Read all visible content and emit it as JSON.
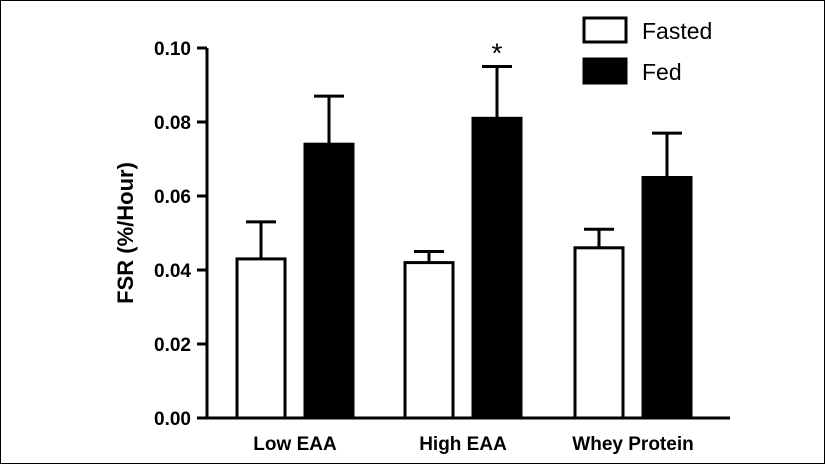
{
  "chart_data": {
    "type": "bar",
    "title": "",
    "xlabel": "",
    "ylabel": "FSR (%/Hour)",
    "ylim": [
      0.0,
      0.1
    ],
    "yticks": [
      "0.00",
      "0.02",
      "0.04",
      "0.06",
      "0.08",
      "0.10"
    ],
    "categories": [
      "Low EAA",
      "High EAA",
      "Whey Protein"
    ],
    "series": [
      {
        "name": "Fasted",
        "color": "#ffffff",
        "values": [
          0.043,
          0.042,
          0.046
        ],
        "errors": [
          0.01,
          0.003,
          0.005
        ]
      },
      {
        "name": "Fed",
        "color": "#000000",
        "values": [
          0.074,
          0.081,
          0.065
        ],
        "errors": [
          0.013,
          0.014,
          0.012
        ]
      }
    ],
    "annotations": [
      {
        "text": "*",
        "category": "High EAA",
        "series": "Fed"
      }
    ],
    "legend_position": "top-right",
    "grid": false
  }
}
